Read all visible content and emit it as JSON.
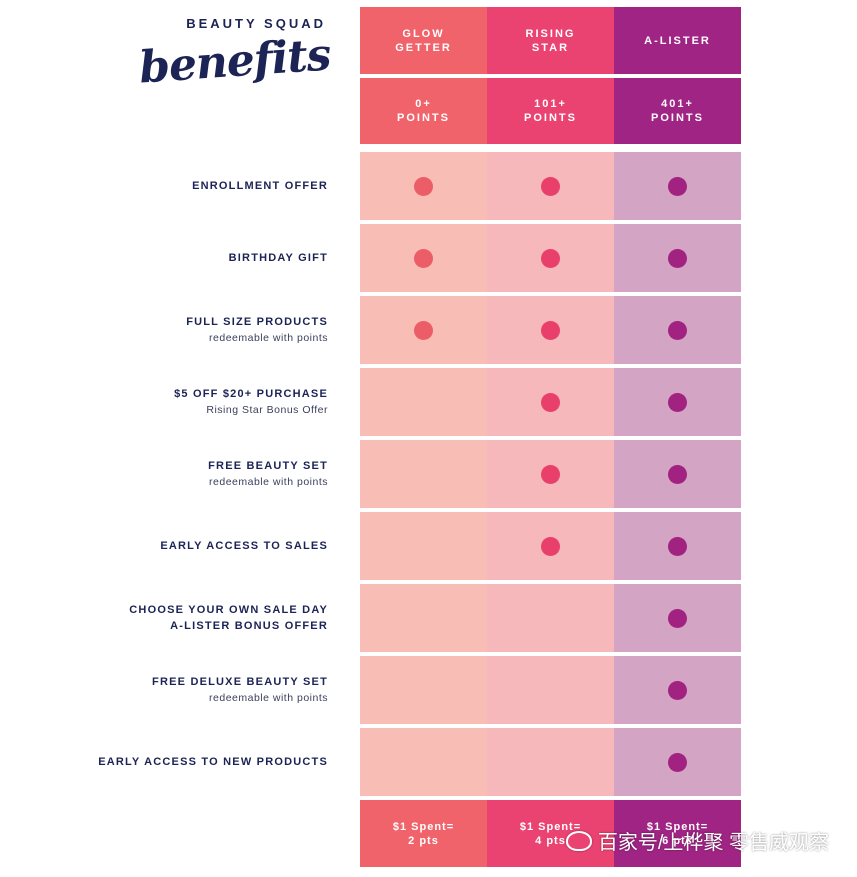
{
  "header": {
    "brand": "BEAUTY SQUAD",
    "script_title": "benefits"
  },
  "tiers": [
    {
      "name": "GLOW\nGETTER",
      "points": "0+\nPOINTS",
      "earn": "$1 Spent=\n2 pts"
    },
    {
      "name": "RISING\nSTAR",
      "points": "101+\nPOINTS",
      "earn": "$1 Spent=\n4 pts"
    },
    {
      "name": "A-LISTER",
      "points": "401+\nPOINTS",
      "earn": "$1 Spent=\n6 pts"
    }
  ],
  "benefits": [
    {
      "title": "ENROLLMENT OFFER",
      "subtitle": "",
      "tiers": [
        true,
        true,
        true
      ]
    },
    {
      "title": "BIRTHDAY GIFT",
      "subtitle": "",
      "tiers": [
        true,
        true,
        true
      ]
    },
    {
      "title": "FULL SIZE PRODUCTS",
      "subtitle": "redeemable with points",
      "tiers": [
        true,
        true,
        true
      ]
    },
    {
      "title": "$5 OFF $20+ PURCHASE",
      "subtitle": "Rising Star Bonus Offer",
      "tiers": [
        false,
        true,
        true
      ]
    },
    {
      "title": "FREE BEAUTY SET",
      "subtitle": "redeemable with points",
      "tiers": [
        false,
        true,
        true
      ]
    },
    {
      "title": "EARLY ACCESS TO SALES",
      "subtitle": "",
      "tiers": [
        false,
        true,
        true
      ]
    },
    {
      "title": "CHOOSE YOUR OWN SALE DAY\nA-LISTER BONUS OFFER",
      "subtitle": "",
      "tiers": [
        false,
        false,
        true
      ]
    },
    {
      "title": "FREE DELUXE BEAUTY SET",
      "subtitle": "redeemable with points",
      "tiers": [
        false,
        false,
        true
      ]
    },
    {
      "title": "EARLY ACCESS TO NEW PRODUCTS",
      "subtitle": "",
      "tiers": [
        false,
        false,
        true
      ]
    }
  ],
  "watermark": "百家号/上桦聚 零售威观察"
}
